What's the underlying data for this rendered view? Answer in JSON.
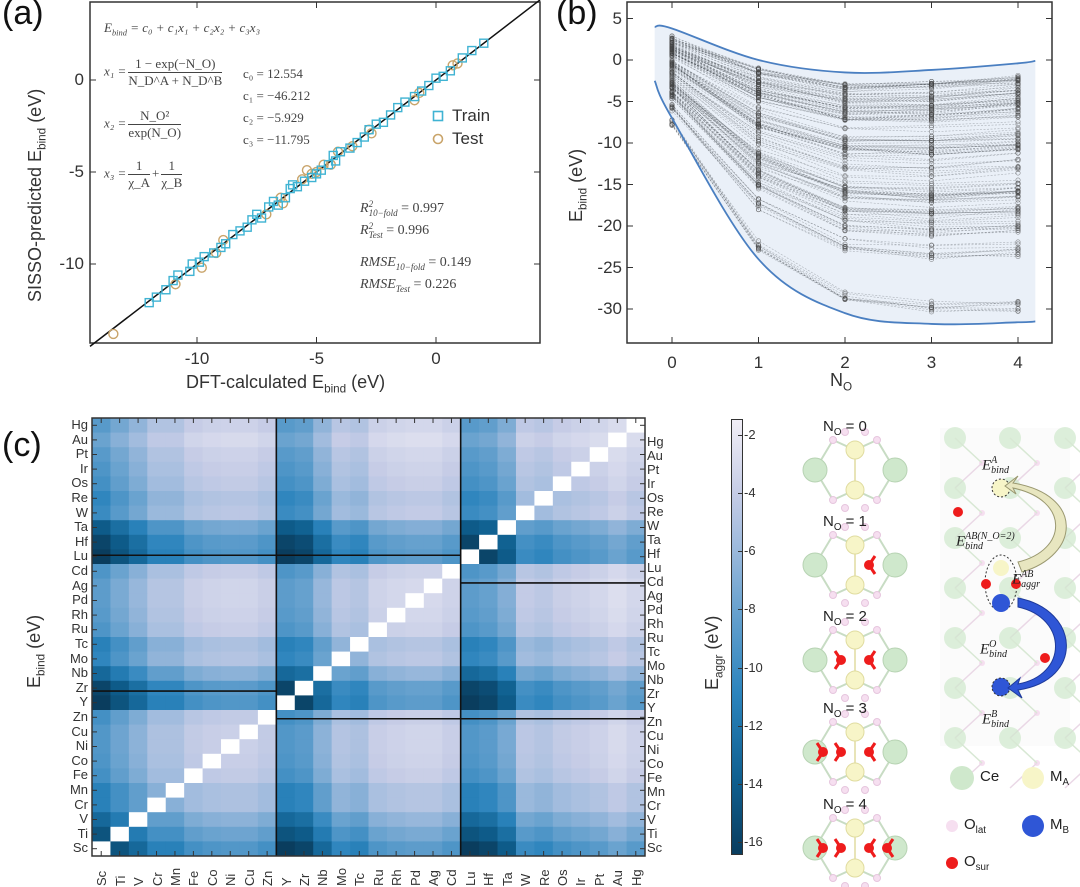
{
  "panels": {
    "a": "(a)",
    "b": "(b)",
    "c": "(c)"
  },
  "chart_data": [
    {
      "type": "scatter",
      "title": "",
      "xlabel": "DFT-calculated E",
      "xlabel_sub": "bind",
      "xlabel_unit": " (eV)",
      "ylabel": "SISSO-predicted E",
      "ylabel_sub": "bind",
      "ylabel_unit": " (eV)",
      "xlim": [
        -14.5,
        4.3
      ],
      "ylim": [
        -14.3,
        4.2
      ],
      "x_ticks": [
        "-10",
        "-5",
        "0"
      ],
      "x_tick_values": [
        -10,
        -5,
        0
      ],
      "y_ticks": [
        "0",
        "-5",
        "-10"
      ],
      "y_tick_values": [
        0,
        -5,
        -10
      ],
      "legend_position": "right",
      "series": [
        {
          "name": "Train",
          "color": "#3fb3d3",
          "marker": "square",
          "points": [
            [
              -12,
              -12.1
            ],
            [
              -11.7,
              -11.8
            ],
            [
              -11.3,
              -11.4
            ],
            [
              -11,
              -10.9
            ],
            [
              -10.8,
              -10.6
            ],
            [
              -10.3,
              -10.4
            ],
            [
              -10.2,
              -10
            ],
            [
              -9.9,
              -9.9
            ],
            [
              -9.7,
              -9.6
            ],
            [
              -9.3,
              -9.4
            ],
            [
              -9,
              -9.1
            ],
            [
              -8.8,
              -8.9
            ],
            [
              -8.5,
              -8.4
            ],
            [
              -8.2,
              -8.2
            ],
            [
              -7.9,
              -8
            ],
            [
              -7.7,
              -7.6
            ],
            [
              -7.5,
              -7.3
            ],
            [
              -7.3,
              -7.5
            ],
            [
              -7,
              -6.9
            ],
            [
              -6.8,
              -6.6
            ],
            [
              -6.6,
              -6.8
            ],
            [
              -6.3,
              -6.4
            ],
            [
              -6.1,
              -5.9
            ],
            [
              -6,
              -5.7
            ],
            [
              -5.8,
              -5.8
            ],
            [
              -5.5,
              -5.5
            ],
            [
              -5.2,
              -5.3
            ],
            [
              -5,
              -5.1
            ],
            [
              -4.8,
              -4.9
            ],
            [
              -4.5,
              -4.6
            ],
            [
              -4.3,
              -4.1
            ],
            [
              -4.2,
              -4.4
            ],
            [
              -4,
              -3.9
            ],
            [
              -3.6,
              -3.7
            ],
            [
              -3.3,
              -3.4
            ],
            [
              -3,
              -3.1
            ],
            [
              -2.8,
              -2.7
            ],
            [
              -2.5,
              -2.4
            ],
            [
              -2.2,
              -2.3
            ],
            [
              -1.9,
              -1.9
            ],
            [
              -1.6,
              -1.5
            ],
            [
              -1.3,
              -1.2
            ],
            [
              -0.9,
              -0.9
            ],
            [
              -0.6,
              -0.6
            ],
            [
              -0.3,
              -0.3
            ],
            [
              0,
              0.1
            ],
            [
              0.3,
              0.2
            ],
            [
              0.6,
              0.5
            ],
            [
              1.1,
              1.2
            ],
            [
              1.5,
              1.6
            ],
            [
              2,
              2
            ]
          ]
        },
        {
          "name": "Test",
          "color": "#c9a46a",
          "marker": "circle",
          "points": [
            [
              -13.5,
              -13.8
            ],
            [
              -10.9,
              -11.1
            ],
            [
              -9.8,
              -10.2
            ],
            [
              -9.2,
              -9.4
            ],
            [
              -8.9,
              -8.7
            ],
            [
              -7.1,
              -7.3
            ],
            [
              -6.5,
              -6.4
            ],
            [
              -6.4,
              -6.7
            ],
            [
              -5.6,
              -5.4
            ],
            [
              -5.4,
              -4.9
            ],
            [
              -5.2,
              -5.1
            ],
            [
              -5,
              -5
            ],
            [
              -4.7,
              -4.6
            ],
            [
              -4.4,
              -4.6
            ],
            [
              -4.1,
              -3.9
            ],
            [
              -3.5,
              -3.6
            ],
            [
              -2.8,
              -2.7
            ],
            [
              -2.7,
              -2.9
            ],
            [
              -0.9,
              -1.1
            ],
            [
              -0.7,
              -0.7
            ],
            [
              0.7,
              0.8
            ],
            [
              0.9,
              0.9
            ]
          ]
        }
      ],
      "annotations": {
        "model": {
          "lhs": "E",
          "lhs_sub": "bind",
          "rhs": "= c₀ + c₁x₁ + c₂x₂ + c₃x₃"
        },
        "x1": {
          "lhs": "x₁ =",
          "num": "1 − exp(−N_O)",
          "den": "N_D^A + N_D^B"
        },
        "x2": {
          "lhs": "x₂ =",
          "num": "N_O²",
          "den": "exp(N_O)"
        },
        "x3": {
          "lhs": "x₃ =",
          "num1": "1",
          "den1": "χ_A",
          "plus": "+",
          "num2": "1",
          "den2": "χ_B"
        },
        "coefficients": [
          "c₀ = 12.554",
          "c₁ = −46.212",
          "c₂ = −5.929",
          "c₃ = −11.795"
        ],
        "metrics": [
          {
            "name": "R",
            "sup": "2",
            "sub": "10−fold",
            "value": "= 0.997"
          },
          {
            "name": "R",
            "sup": "2",
            "sub": "Test",
            "value": "= 0.996"
          },
          {
            "name": "RMSE",
            "sup": "",
            "sub": "10−fold",
            "value": "= 0.149"
          },
          {
            "name": "RMSE",
            "sup": "",
            "sub": "Test",
            "value": "= 0.226"
          }
        ]
      }
    },
    {
      "type": "line",
      "xlabel": "N",
      "xlabel_sub": "O",
      "ylabel": "E",
      "ylabel_sub": "bind",
      "ylabel_unit": " (eV)",
      "xlim": [
        -0.5,
        4.4
      ],
      "ylim": [
        -34,
        7
      ],
      "x_ticks": [
        "0",
        "1",
        "2",
        "3",
        "4"
      ],
      "x_tick_values": [
        0,
        1,
        2,
        3,
        4
      ],
      "y_ticks": [
        "5",
        "0",
        "-5",
        "-10",
        "-15",
        "-20",
        "-25",
        "-30"
      ],
      "y_tick_values": [
        5,
        0,
        -5,
        -10,
        -15,
        -20,
        -25,
        -30
      ],
      "envelope": {
        "color": "#4a7fc1",
        "fill": "#eaf0f8",
        "x": [
          -0.2,
          0,
          1,
          2,
          3,
          4,
          4.2
        ],
        "upper": [
          4,
          3.8,
          0,
          -1.5,
          -1.2,
          -0.4,
          -0.1
        ],
        "lower": [
          -2.5,
          -7,
          -24,
          -30.5,
          -31.8,
          -31.6,
          -31.5
        ]
      },
      "series_note": "several hundred dashed grey series, one per metal pair, with circle markers at N_O = 0..4",
      "series_count": 160
    },
    {
      "type": "heatmap",
      "ylabel": "E",
      "ylabel_sub": "bind",
      "ylabel_unit": " (eV)",
      "colorbar_label": "E",
      "colorbar_label_sub": "aggr",
      "colorbar_unit": " (eV)",
      "colorbar_ticks": [
        "-2",
        "-4",
        "-6",
        "-8",
        "-10",
        "-12",
        "-14",
        "-16"
      ],
      "colorbar_tick_values": [
        -2,
        -4,
        -6,
        -8,
        -10,
        -12,
        -14,
        -16
      ],
      "clim": [
        -16.5,
        -1.5
      ],
      "colormap": [
        [
          -16.5,
          "#0a3d5e"
        ],
        [
          -14,
          "#0f5f8f"
        ],
        [
          -11,
          "#2b84bd"
        ],
        [
          -8,
          "#6ba3cf"
        ],
        [
          -6,
          "#9bb9dc"
        ],
        [
          -4,
          "#c5cce6"
        ],
        [
          -1.5,
          "#f1eef6"
        ]
      ],
      "columns": [
        "Sc",
        "Ti",
        "V",
        "Cr",
        "Mn",
        "Fe",
        "Co",
        "Ni",
        "Cu",
        "Zn",
        "Y",
        "Zr",
        "Nb",
        "Mo",
        "Tc",
        "Ru",
        "Rh",
        "Pd",
        "Ag",
        "Cd",
        "Lu",
        "Hf",
        "Ta",
        "W",
        "Re",
        "Os",
        "Ir",
        "Pt",
        "Au",
        "Hg"
      ],
      "left_rows": [
        "Hg",
        "Au",
        "Pt",
        "Ir",
        "Os",
        "Re",
        "W",
        "Ta",
        "Hf",
        "Lu",
        "Cd",
        "Ag",
        "Pd",
        "Rh",
        "Ru",
        "Tc",
        "Mo",
        "Nb",
        "Zr",
        "Y",
        "Zn",
        "Cu",
        "Ni",
        "Co",
        "Fe",
        "Mn",
        "Cr",
        "V",
        "Ti",
        "Sc"
      ],
      "right_rows": [
        "Hg",
        "Au",
        "Pt",
        "Ir",
        "Os",
        "Re",
        "W",
        "Ta",
        "Hf",
        "Lu",
        "Cd",
        "Ag",
        "Pd",
        "Rh",
        "Ru",
        "Tc",
        "Mo",
        "Nb",
        "Zr",
        "Y",
        "Zn",
        "Cu",
        "Ni",
        "Co",
        "Fe",
        "Mn",
        "Cr",
        "V",
        "Ti",
        "Sc"
      ],
      "element_binding_strength": {
        "Sc": 1.0,
        "Ti": 0.85,
        "V": 0.7,
        "Cr": 0.5,
        "Mn": 0.5,
        "Fe": 0.35,
        "Co": 0.3,
        "Ni": 0.28,
        "Cu": 0.28,
        "Zn": 0.35,
        "Y": 1.0,
        "Zr": 0.95,
        "Nb": 0.7,
        "Mo": 0.45,
        "Tc": 0.5,
        "Ru": 0.3,
        "Rh": 0.25,
        "Pd": 0.22,
        "Ag": 0.22,
        "Cd": 0.3,
        "Lu": 1.0,
        "Hf": 0.95,
        "Ta": 0.8,
        "W": 0.4,
        "Re": 0.45,
        "Os": 0.35,
        "Ir": 0.3,
        "Pt": 0.25,
        "Au": 0.15,
        "Hg": 0.25
      }
    }
  ],
  "structures": {
    "titles": [
      {
        "n": "N",
        "sub": "O",
        "eq": " = 0",
        "osur": 0
      },
      {
        "n": "N",
        "sub": "O",
        "eq": " = 1",
        "osur": 1
      },
      {
        "n": "N",
        "sub": "O",
        "eq": " = 2",
        "osur": 2
      },
      {
        "n": "N",
        "sub": "O",
        "eq": " = 3",
        "osur": 3
      },
      {
        "n": "N",
        "sub": "O",
        "eq": " = 4",
        "osur": 4
      }
    ],
    "annotations": [
      {
        "base": "E",
        "sup": "A",
        "sub": "bind"
      },
      {
        "base": "E",
        "sup": "AB(N_O=2)",
        "sub": "bind"
      },
      {
        "base": "E",
        "sup": "AB",
        "sub": "aggr"
      },
      {
        "base": "E",
        "sup": "O",
        "sub": "bind"
      },
      {
        "base": "E",
        "sup": "B",
        "sub": "bind"
      }
    ],
    "legend": [
      {
        "label": "Ce",
        "sub": "",
        "color": "#cfe8cc"
      },
      {
        "label": "M",
        "sub": "A",
        "color": "#f7f5c8"
      },
      {
        "label": "O",
        "sub": "lat",
        "color": "#f6dff0"
      },
      {
        "label": "M",
        "sub": "B",
        "color": "#2f56d6"
      },
      {
        "label": "O",
        "sub": "sur",
        "color": "#ee1c1c"
      }
    ]
  }
}
